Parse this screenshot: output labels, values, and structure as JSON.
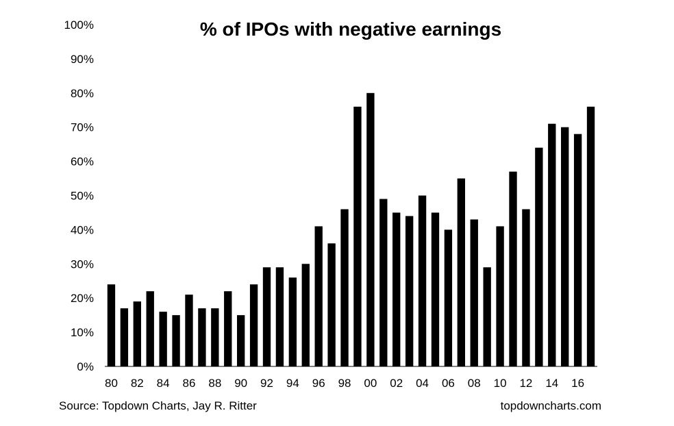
{
  "chart_data": {
    "type": "bar",
    "title": "% of IPOs with negative earnings",
    "xlabel": "",
    "ylabel": "",
    "ylim": [
      0,
      100
    ],
    "y_ticks": [
      "0%",
      "10%",
      "20%",
      "30%",
      "40%",
      "50%",
      "60%",
      "70%",
      "80%",
      "90%",
      "100%"
    ],
    "y_tick_values": [
      0,
      10,
      20,
      30,
      40,
      50,
      60,
      70,
      80,
      90,
      100
    ],
    "categories": [
      "80",
      "81",
      "82",
      "83",
      "84",
      "85",
      "86",
      "87",
      "88",
      "89",
      "90",
      "91",
      "92",
      "93",
      "94",
      "95",
      "96",
      "97",
      "98",
      "99",
      "00",
      "01",
      "02",
      "03",
      "04",
      "05",
      "06",
      "07",
      "08",
      "09",
      "10",
      "11",
      "12",
      "13",
      "14",
      "15",
      "16",
      "17"
    ],
    "x_tick_labels_shown": [
      "80",
      "82",
      "84",
      "86",
      "88",
      "90",
      "92",
      "94",
      "96",
      "98",
      "00",
      "02",
      "04",
      "06",
      "08",
      "10",
      "12",
      "14",
      "16"
    ],
    "values": [
      24,
      17,
      19,
      22,
      16,
      15,
      21,
      17,
      17,
      22,
      15,
      24,
      29,
      29,
      26,
      30,
      41,
      36,
      46,
      76,
      80,
      49,
      45,
      44,
      50,
      45,
      40,
      55,
      43,
      29,
      41,
      57,
      46,
      64,
      71,
      70,
      68,
      76
    ],
    "bar_color": "#000000",
    "grid": false,
    "legend": "none"
  },
  "footer": {
    "source": "Source: Topdown Charts, Jay R. Ritter",
    "site": "topdowncharts.com"
  }
}
